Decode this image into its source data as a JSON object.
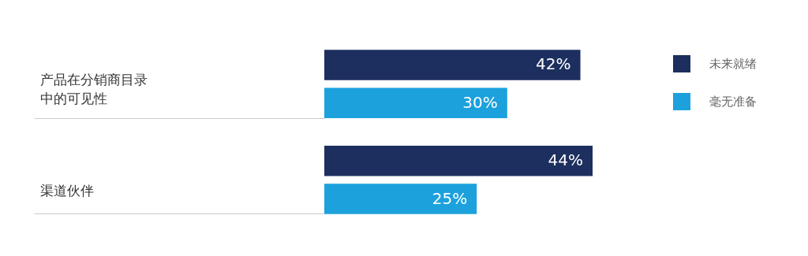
{
  "chart_data": {
    "type": "bar",
    "orientation": "horizontal",
    "categories": [
      "产品在分销商目录中的可见性",
      "渠道伙伴"
    ],
    "series": [
      {
        "name": "未来就绪",
        "color": "#1c2f5e",
        "values": [
          42,
          44
        ],
        "value_labels": [
          "42%",
          "44%"
        ]
      },
      {
        "name": "毫无准备",
        "color": "#1ca1dc",
        "values": [
          30,
          25
        ],
        "value_labels": [
          "30%",
          "25%"
        ]
      }
    ],
    "legend": "top right"
  }
}
